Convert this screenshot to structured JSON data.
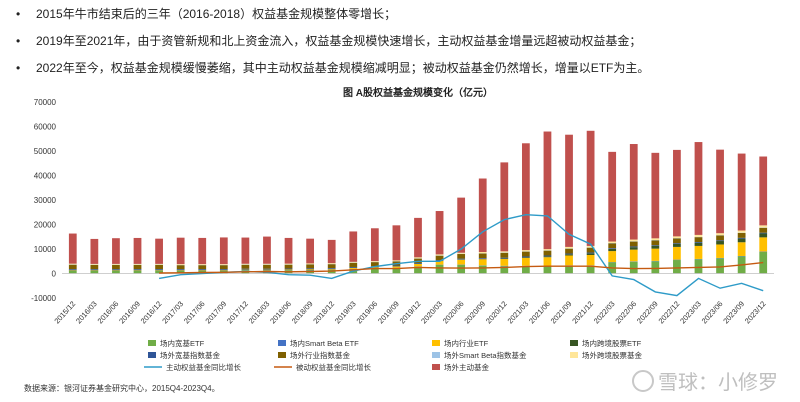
{
  "bullets": [
    "2015年牛市结束后的三年（2016-2018）权益基金规模整体零增长；",
    "2019年至2021年，由于资管新规和北上资金流入，权益基金规模快速增长，主动权益基金增量远超被动权益基金；",
    "2022年至今，权益基金规模缓慢萎缩，其中主动权益基金规模缩减明显；被动权益基金仍然增长，增量以ETF为主。"
  ],
  "bullet_symbol": "•",
  "source": "数据来源：银河证券基金研究中心，2015Q4-2023Q4。",
  "watermark": "雪球：小修罗",
  "chart_data": {
    "type": "bar",
    "title": "图 A股权益基金规模变化（亿元）",
    "ylim": [
      -10000,
      70000
    ],
    "yticks": [
      -10000,
      0,
      10000,
      20000,
      30000,
      40000,
      50000,
      60000,
      70000
    ],
    "grid": false,
    "legend_position": "bottom",
    "categories": [
      "2015/12",
      "2016/03",
      "2016/06",
      "2016/09",
      "2016/12",
      "2017/03",
      "2017/06",
      "2017/09",
      "2017/12",
      "2018/03",
      "2018/06",
      "2018/09",
      "2018/12",
      "2019/03",
      "2019/06",
      "2019/09",
      "2019/12",
      "2020/03",
      "2020/06",
      "2020/09",
      "2020/12",
      "2021/03",
      "2021/06",
      "2021/09",
      "2021/12",
      "2022/03",
      "2022/06",
      "2022/09",
      "2022/12",
      "2023/03",
      "2023/06",
      "2023/09",
      "2023/12"
    ],
    "stack_series": [
      {
        "name": "场内宽基ETF",
        "color": "#70ad47",
        "values": [
          1200,
          1200,
          1200,
          1200,
          1200,
          1200,
          1200,
          1200,
          1300,
          1300,
          1300,
          1400,
          1500,
          1800,
          2000,
          2200,
          2800,
          3500,
          3500,
          3200,
          3000,
          3000,
          3000,
          3200,
          3200,
          4500,
          4800,
          5000,
          5500,
          5800,
          6200,
          7000,
          8800
        ]
      },
      {
        "name": "场内Smart Beta ETF",
        "color": "#4472c4",
        "values": [
          60,
          60,
          60,
          60,
          60,
          60,
          60,
          60,
          60,
          60,
          60,
          60,
          60,
          80,
          80,
          80,
          100,
          100,
          120,
          120,
          150,
          150,
          150,
          150,
          150,
          150,
          150,
          150,
          150,
          150,
          150,
          150,
          150
        ]
      },
      {
        "name": "场内行业ETF",
        "color": "#ffc000",
        "values": [
          200,
          200,
          200,
          200,
          200,
          200,
          200,
          200,
          250,
          250,
          300,
          300,
          300,
          400,
          500,
          600,
          1000,
          1500,
          2000,
          2500,
          2800,
          3200,
          3500,
          4000,
          4200,
          4500,
          4800,
          5000,
          5200,
          5300,
          5500,
          5600,
          5800
        ]
      },
      {
        "name": "场内跨境股票ETF",
        "color": "#375623",
        "values": [
          50,
          50,
          50,
          50,
          60,
          60,
          60,
          60,
          60,
          60,
          60,
          60,
          60,
          80,
          80,
          80,
          100,
          100,
          150,
          150,
          200,
          300,
          400,
          500,
          700,
          900,
          1000,
          1100,
          1200,
          1300,
          1400,
          1500,
          1600
        ]
      },
      {
        "name": "场外宽基指数基金",
        "color": "#2f5597",
        "values": [
          300,
          300,
          300,
          300,
          300,
          300,
          300,
          300,
          300,
          300,
          300,
          300,
          300,
          300,
          300,
          300,
          300,
          300,
          300,
          300,
          300,
          300,
          300,
          300,
          300,
          300,
          300,
          300,
          300,
          300,
          300,
          300,
          300
        ]
      },
      {
        "name": "场外行业指数基金",
        "color": "#7f6000",
        "values": [
          1800,
          1700,
          1700,
          1700,
          1700,
          1600,
          1600,
          1600,
          1600,
          1600,
          1600,
          1600,
          1600,
          1700,
          1700,
          1700,
          1800,
          1800,
          1900,
          1900,
          2000,
          2000,
          2000,
          2000,
          2000,
          2000,
          2000,
          2000,
          2000,
          2000,
          2000,
          2000,
          2000
        ]
      },
      {
        "name": "场外Smart Beta指数基金",
        "color": "#9dc3e6",
        "values": [
          100,
          100,
          100,
          100,
          100,
          100,
          100,
          100,
          100,
          100,
          100,
          100,
          100,
          100,
          100,
          100,
          100,
          100,
          100,
          100,
          100,
          100,
          100,
          100,
          100,
          100,
          100,
          100,
          100,
          100,
          100,
          100,
          100
        ]
      },
      {
        "name": "场外跨境股票基金",
        "color": "#ffe699",
        "values": [
          300,
          300,
          300,
          300,
          300,
          300,
          300,
          300,
          300,
          300,
          300,
          300,
          300,
          300,
          300,
          300,
          400,
          400,
          400,
          500,
          500,
          500,
          500,
          600,
          600,
          600,
          700,
          700,
          700,
          800,
          800,
          900,
          900
        ]
      },
      {
        "name": "场外主动基金",
        "color": "#c0504d",
        "values": [
          12300,
          10200,
          10500,
          10600,
          10300,
          10800,
          10700,
          10900,
          10700,
          11100,
          10500,
          10100,
          9500,
          12400,
          13400,
          14300,
          16100,
          17700,
          22500,
          30000,
          36300,
          43600,
          48000,
          45800,
          47000,
          36600,
          39000,
          34900,
          35300,
          37900,
          34100,
          31400,
          28100
        ]
      }
    ],
    "line_series": [
      {
        "name": "主动权益基金同比增长",
        "color": "#2e9bc8",
        "values": [
          null,
          null,
          null,
          null,
          -2000,
          -500,
          0,
          500,
          800,
          500,
          -500,
          -700,
          -2000,
          1000,
          2800,
          4000,
          5000,
          5000,
          10000,
          17000,
          22000,
          24000,
          23500,
          16000,
          12000,
          -1000,
          -2500,
          -7500,
          -9000,
          -2000,
          -6000,
          -4000,
          -7000
        ]
      },
      {
        "name": "被动权益基金同比增长",
        "color": "#c55a11",
        "values": [
          null,
          null,
          null,
          null,
          200,
          300,
          400,
          500,
          700,
          800,
          700,
          800,
          1000,
          1500,
          2000,
          2000,
          2500,
          2300,
          2200,
          2300,
          2500,
          2800,
          3000,
          3000,
          3000,
          2300,
          2000,
          2100,
          2300,
          2500,
          2700,
          3500,
          4500
        ]
      }
    ],
    "legend_order": [
      "场内宽基ETF",
      "场内Smart Beta ETF",
      "场内行业ETF",
      "场内跨境股票ETF",
      "场外宽基指数基金",
      "场外行业指数基金",
      "场外Smart Beta指数基金",
      "场外跨境股票基金",
      "主动权益基金同比增长",
      "被动权益基金同比增长",
      "场外主动基金"
    ]
  }
}
